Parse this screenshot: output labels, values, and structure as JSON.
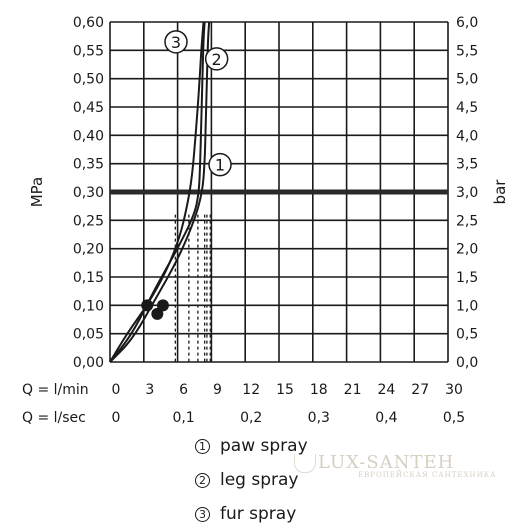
{
  "chart_data": {
    "type": "line",
    "left_axis": {
      "label": "MPa",
      "ticks": [
        "0,00",
        "0,05",
        "0,10",
        "0,15",
        "0,20",
        "0,25",
        "0,30",
        "0,35",
        "0,40",
        "0,45",
        "0,50",
        "0,55",
        "0,60"
      ],
      "ylim": [
        0,
        0.6
      ]
    },
    "right_axis": {
      "label": "bar",
      "ticks": [
        "0,0",
        "0,5",
        "1,0",
        "1,5",
        "2,0",
        "2,5",
        "3,0",
        "3,5",
        "4,0",
        "4,5",
        "5,0",
        "5,5",
        "6,0"
      ],
      "ylim": [
        0,
        6
      ]
    },
    "x_axis_lmin": {
      "label": "Q = l/min",
      "ticks": [
        "0",
        "3",
        "6",
        "9",
        "12",
        "15",
        "18",
        "21",
        "24",
        "27",
        "30"
      ],
      "xlim": [
        0,
        30
      ]
    },
    "x_axis_lsec": {
      "label": "Q = l/sec",
      "ticks": [
        "0",
        "0,1",
        "0,2",
        "0,3",
        "0,4",
        "0,5"
      ],
      "tick_values": [
        0,
        0.1,
        0.2,
        0.3,
        0.4,
        0.5
      ]
    },
    "reference_line": {
      "y": 0.3
    },
    "dashed_verticals_x": [
      5.8,
      7.0,
      7.8,
      8.4,
      8.6,
      8.9
    ],
    "series": [
      {
        "marker": "1",
        "x": [
          0,
          2,
          4,
          6,
          7.5,
          8.2,
          8.4,
          8.5,
          8.6,
          8.7,
          8.8
        ],
        "y": [
          0,
          0.04,
          0.11,
          0.18,
          0.25,
          0.3,
          0.35,
          0.42,
          0.5,
          0.57,
          0.6
        ],
        "dot": [
          4.2,
          0.085
        ]
      },
      {
        "marker": "2",
        "x": [
          0,
          2,
          4,
          6,
          7.5,
          7.9,
          8.0,
          8.1,
          8.2,
          8.3,
          8.4
        ],
        "y": [
          0,
          0.05,
          0.13,
          0.2,
          0.26,
          0.3,
          0.35,
          0.42,
          0.5,
          0.57,
          0.6
        ],
        "dot": [
          4.7,
          0.1
        ]
      },
      {
        "marker": "3",
        "x": [
          0,
          1.5,
          3.3,
          5,
          6.2,
          6.9,
          7.3,
          7.6,
          7.9,
          8.1,
          8.3
        ],
        "y": [
          0,
          0.05,
          0.1,
          0.16,
          0.22,
          0.28,
          0.33,
          0.4,
          0.48,
          0.55,
          0.6
        ],
        "dot": [
          3.3,
          0.1
        ]
      }
    ],
    "grid": true
  },
  "legend": [
    {
      "num": "1",
      "label": "paw spray"
    },
    {
      "num": "2",
      "label": "leg spray"
    },
    {
      "num": "3",
      "label": "fur spray"
    }
  ],
  "watermark": {
    "main": "LUX-SANTEH",
    "sub": "ЕВРОПЕЙСКАЯ САНТЕХНИКА"
  },
  "colors": {
    "line": "#1a1a1a",
    "grid": "#1a1a1a",
    "reference": "#2a2a2a"
  }
}
